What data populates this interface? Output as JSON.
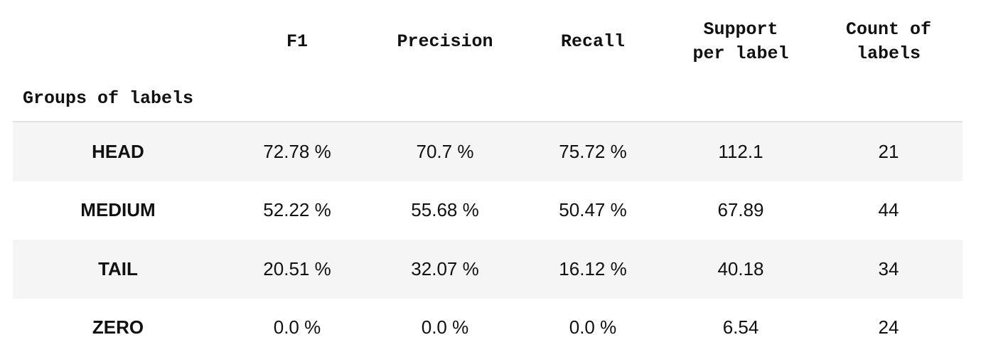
{
  "table": {
    "index_name": "Groups of labels",
    "columns": [
      "F1",
      "Precision",
      "Recall",
      "Support\nper label",
      "Count of\nlabels"
    ],
    "rows": [
      {
        "group": "HEAD",
        "f1": "72.78 %",
        "precision": "70.7 %",
        "recall": "75.72 %",
        "support": "112.1",
        "count": "21"
      },
      {
        "group": "MEDIUM",
        "f1": "52.22 %",
        "precision": "55.68 %",
        "recall": "50.47 %",
        "support": "67.89",
        "count": "44"
      },
      {
        "group": "TAIL",
        "f1": "20.51 %",
        "precision": "32.07 %",
        "recall": "16.12 %",
        "support": "40.18",
        "count": "34"
      },
      {
        "group": "ZERO",
        "f1": "0.0 %",
        "precision": "0.0 %",
        "recall": "0.0 %",
        "support": "6.54",
        "count": "24"
      }
    ]
  },
  "colors": {
    "shaded_row": "#f5f5f5",
    "divider": "#e2e2e2",
    "text": "#111111"
  }
}
